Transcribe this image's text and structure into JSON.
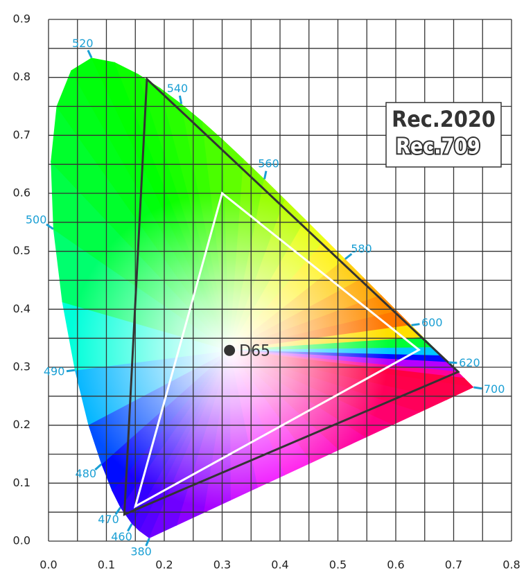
{
  "chart_data": {
    "type": "chromaticity",
    "xlim": [
      0,
      0.8
    ],
    "ylim": [
      0,
      0.9
    ],
    "xticks": [
      {
        "value": 0,
        "label": "0.0"
      },
      0.1,
      0.2,
      0.3,
      0.4,
      0.5,
      0.6,
      0.7,
      0.8
    ],
    "yticks": [
      {
        "value": 0,
        "label": "0.0"
      },
      0.1,
      0.2,
      0.3,
      0.4,
      0.5,
      0.6,
      0.7,
      0.8,
      0.9
    ],
    "x_minor_ticks": [
      0.05,
      0.15,
      0.25,
      0.35,
      0.45,
      0.55,
      0.65,
      0.75
    ],
    "y_minor_ticks": [
      0.05,
      0.15,
      0.25,
      0.35,
      0.45,
      0.55,
      0.65,
      0.75,
      0.85
    ],
    "grid": true,
    "grid_color": "#333333",
    "spectral_locus": {
      "label_color": "#1a9fd4",
      "x": [
        0.1741,
        0.1566,
        0.144,
        0.1241,
        0.1096,
        0.0913,
        0.0687,
        0.0454,
        0.0235,
        0.0082,
        0.0039,
        0.0139,
        0.0389,
        0.0743,
        0.1142,
        0.1547,
        0.1929,
        0.2296,
        0.2658,
        0.3016,
        0.3373,
        0.3731,
        0.4087,
        0.4441,
        0.4788,
        0.5125,
        0.5448,
        0.5752,
        0.6029,
        0.627,
        0.6482,
        0.6658,
        0.6801,
        0.6915,
        0.7079,
        0.719,
        0.7347
      ],
      "y": [
        0.005,
        0.0177,
        0.0297,
        0.0578,
        0.0868,
        0.1327,
        0.2007,
        0.295,
        0.4127,
        0.5384,
        0.6548,
        0.7502,
        0.812,
        0.8338,
        0.8262,
        0.8059,
        0.7816,
        0.7543,
        0.7243,
        0.6923,
        0.6589,
        0.6245,
        0.5896,
        0.5547,
        0.5202,
        0.4866,
        0.4544,
        0.4242,
        0.3965,
        0.3725,
        0.3514,
        0.334,
        0.3197,
        0.3083,
        0.292,
        0.2809,
        0.2653
      ],
      "labels": [
        380,
        null,
        460,
        470,
        null,
        480,
        null,
        490,
        null,
        500,
        null,
        null,
        null,
        520,
        null,
        null,
        null,
        540,
        null,
        null,
        null,
        560,
        null,
        null,
        null,
        580,
        null,
        null,
        null,
        600,
        null,
        null,
        null,
        620,
        null,
        null,
        700
      ]
    },
    "gamuts": [
      {
        "name": "Rec.2020",
        "color": "#333333",
        "x": [
          0.708,
          0.17,
          0.131
        ],
        "y": [
          0.292,
          0.797,
          0.046
        ]
      },
      {
        "name": "Rec.709",
        "color": "#ffffff",
        "x": [
          0.64,
          0.3,
          0.15
        ],
        "y": [
          0.33,
          0.6,
          0.06
        ]
      }
    ],
    "white_point": {
      "label": "D65",
      "x": 0.3127,
      "y": 0.329,
      "color": "#333333"
    }
  }
}
